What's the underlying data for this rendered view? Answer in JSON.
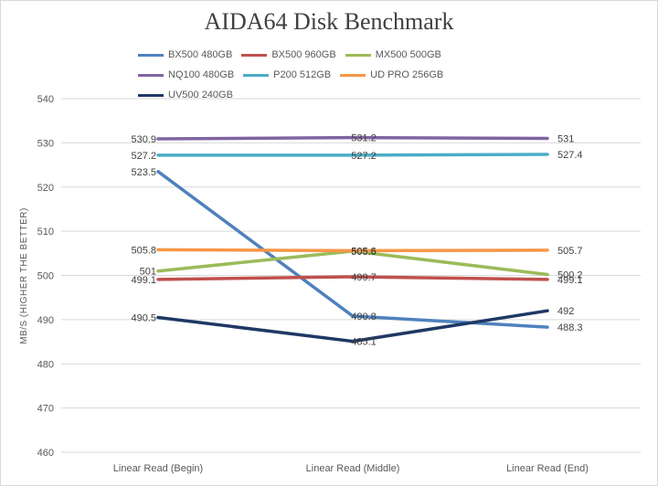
{
  "chart_data": {
    "type": "line",
    "title": "AIDA64 Disk Benchmark",
    "ylabel": "MB/S (HIGHER THE BETTER)",
    "xlabel": "",
    "categories": [
      "Linear Read (Begin)",
      "Linear Read (Middle)",
      "Linear Read (End)"
    ],
    "ylim": [
      460,
      540
    ],
    "ytick_step": 10,
    "grid": true,
    "legend_position": "top",
    "series": [
      {
        "name": "BX500 480GB",
        "color": "#4f81bd",
        "values": [
          523.5,
          490.8,
          488.3
        ],
        "labels": [
          "523.5",
          "490.8",
          "488.3"
        ]
      },
      {
        "name": "BX500 960GB",
        "color": "#c0504d",
        "values": [
          499.1,
          499.7,
          499.1
        ],
        "labels": [
          "499.1",
          "499.7",
          "499.1"
        ]
      },
      {
        "name": "MX500 500GB",
        "color": "#9bbb59",
        "values": [
          501,
          505.5,
          500.2
        ],
        "labels": [
          "501",
          "505.5",
          "500.2"
        ]
      },
      {
        "name": "NQ100 480GB",
        "color": "#8064a2",
        "values": [
          530.9,
          531.2,
          531
        ],
        "labels": [
          "530.9",
          "531.2",
          "531"
        ]
      },
      {
        "name": "P200 512GB",
        "color": "#4bacc6",
        "values": [
          527.2,
          527.2,
          527.4
        ],
        "labels": [
          "527.2",
          "527.2",
          "527.4"
        ]
      },
      {
        "name": "UD PRO 256GB",
        "color": "#f79646",
        "values": [
          505.8,
          505.6,
          505.7
        ],
        "labels": [
          "505.8",
          "505.6",
          "505.7"
        ]
      },
      {
        "name": "UV500 240GB",
        "color": "#1f3864",
        "values": [
          490.5,
          485.1,
          492
        ],
        "labels": [
          "490.5",
          "485.1",
          "492"
        ]
      }
    ]
  }
}
